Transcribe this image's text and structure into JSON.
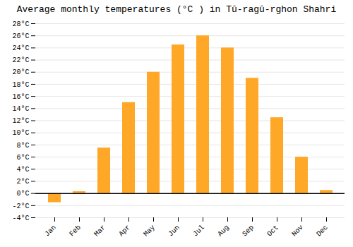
{
  "chart_data": {
    "type": "bar",
    "title": "Average monthly temperatures (°C ) in Tū-ragū-rghon Shahri",
    "categories": [
      "Jan",
      "Feb",
      "Mar",
      "Apr",
      "May",
      "Jun",
      "Jul",
      "Aug",
      "Sep",
      "Oct",
      "Nov",
      "Dec"
    ],
    "values": [
      -1.5,
      0.3,
      7.5,
      15.0,
      20.0,
      24.5,
      26.0,
      24.0,
      19.0,
      12.5,
      6.0,
      0.5
    ],
    "color": "#FFA726",
    "ylim": [
      -4,
      28
    ],
    "yticks": [
      {
        "value": -4,
        "label": "-4°C"
      },
      {
        "value": -2,
        "label": "-2°C"
      },
      {
        "value": 0,
        "label": "0°C"
      },
      {
        "value": 2,
        "label": "2°C"
      },
      {
        "value": 4,
        "label": "4°C"
      },
      {
        "value": 6,
        "label": "6°C"
      },
      {
        "value": 8,
        "label": "8°C"
      },
      {
        "value": 10,
        "label": "10°C"
      },
      {
        "value": 12,
        "label": "12°C"
      },
      {
        "value": 14,
        "label": "14°C"
      },
      {
        "value": 16,
        "label": "16°C"
      },
      {
        "value": 18,
        "label": "18°C"
      },
      {
        "value": 20,
        "label": "20°C"
      },
      {
        "value": 22,
        "label": "22°C"
      },
      {
        "value": 24,
        "label": "24°C"
      },
      {
        "value": 26,
        "label": "26°C"
      },
      {
        "value": 28,
        "label": "28°C"
      }
    ],
    "grid": true
  }
}
